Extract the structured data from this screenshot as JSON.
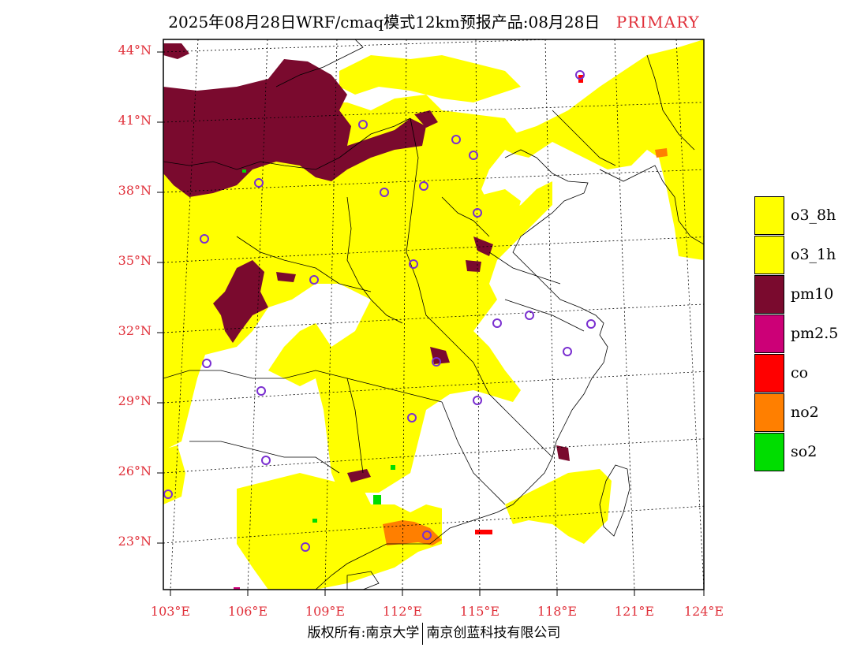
{
  "header": {
    "title": "2025年08月28日WRF/cmaq模式12km预报产品:08月28日",
    "tag": "PRIMARY"
  },
  "map": {
    "lat_labels": [
      "44°N",
      "41°N",
      "38°N",
      "35°N",
      "32°N",
      "29°N",
      "26°N",
      "23°N"
    ],
    "lon_labels": [
      "103°E",
      "106°E",
      "109°E",
      "112°E",
      "115°E",
      "118°E",
      "121°E",
      "124°E"
    ],
    "colors": {
      "o3": "#ffff00",
      "pm10": "#7a0a2e",
      "pm25": "#cc0077",
      "co": "#ff0000",
      "no2": "#ff7f00",
      "so2": "#00dd00",
      "station": "#7a2fd0"
    }
  },
  "legend": {
    "items": [
      {
        "label": "o3_8h",
        "color": "#ffff00"
      },
      {
        "label": "o3_1h",
        "color": "#ffff00"
      },
      {
        "label": "pm10",
        "color": "#7a0a2e"
      },
      {
        "label": "pm2.5",
        "color": "#cc0077"
      },
      {
        "label": "co",
        "color": "#ff0000"
      },
      {
        "label": "no2",
        "color": "#ff7f00"
      },
      {
        "label": "so2",
        "color": "#00dd00"
      }
    ]
  },
  "footer": {
    "left": "版权所有:南京大学",
    "right": "南京创蓝科技有限公司"
  }
}
